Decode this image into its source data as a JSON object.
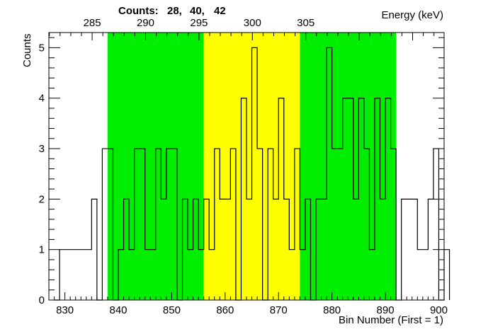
{
  "header": {
    "counts_label": "Counts:",
    "counts_values": [
      "28,",
      "40,",
      "42"
    ]
  },
  "chart_data": {
    "type": "histogram",
    "xlabel": "Bin Number (First = 1)",
    "ylabel": "Counts",
    "x2label": "Energy (keV)",
    "xlim": [
      827,
      901
    ],
    "ylim": [
      0,
      5.3
    ],
    "xticks": [
      830,
      840,
      850,
      860,
      870,
      880,
      890,
      900
    ],
    "yticks": [
      0,
      1,
      2,
      3,
      4,
      5
    ],
    "energy_ticks": [
      {
        "label": "285",
        "bin": 835.1
      },
      {
        "label": "290",
        "bin": 845.1
      },
      {
        "label": "295",
        "bin": 855.1
      },
      {
        "label": "300",
        "bin": 865.1
      },
      {
        "label": "305",
        "bin": 875.1
      }
    ],
    "regions": [
      {
        "name": "left-background",
        "from": 838,
        "to": 856,
        "color": "#00ee00"
      },
      {
        "name": "peak",
        "from": 856,
        "to": 874,
        "color": "#ffff00"
      },
      {
        "name": "right-background",
        "from": 874,
        "to": 892,
        "color": "#00ee00"
      }
    ],
    "bin_start": 828,
    "counts": [
      0,
      1,
      1,
      1,
      1,
      1,
      1,
      2,
      0,
      3,
      3,
      0,
      1,
      2,
      1,
      3,
      3,
      1,
      1,
      3,
      2,
      3,
      3,
      0,
      2,
      1,
      2,
      1,
      2,
      1,
      3,
      2,
      2,
      3,
      0,
      4,
      2,
      5,
      3,
      0,
      3,
      2,
      4,
      2,
      1,
      3,
      1,
      2,
      0,
      2,
      2,
      5,
      3,
      3,
      4,
      4,
      2,
      4,
      3,
      1,
      4,
      2,
      4,
      3,
      0,
      2,
      2,
      2,
      1,
      1,
      2,
      3,
      0,
      1
    ]
  }
}
